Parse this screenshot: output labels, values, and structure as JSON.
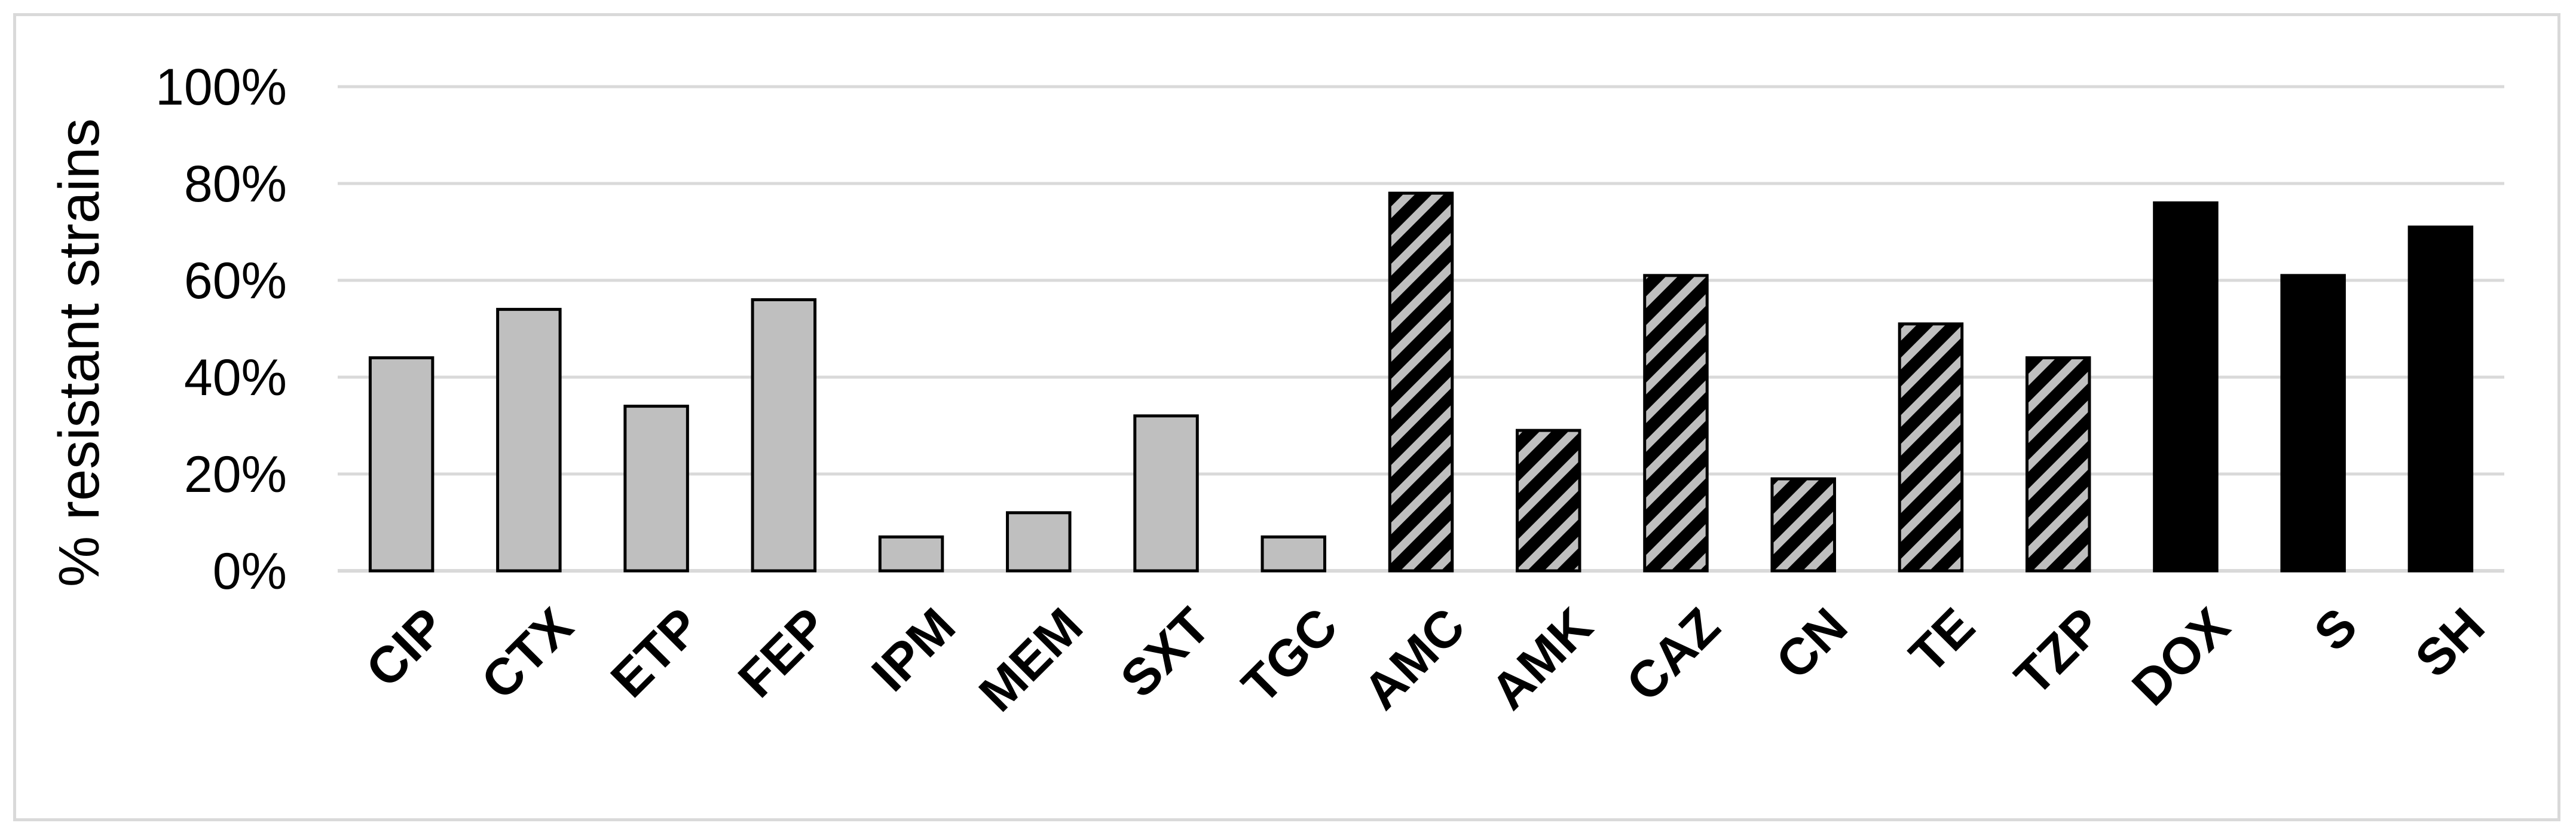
{
  "chart_data": {
    "type": "bar",
    "title": "",
    "xlabel": "",
    "ylabel": "% resistant strains",
    "ylim": [
      0,
      100
    ],
    "yticks": [
      0,
      20,
      40,
      60,
      80,
      100
    ],
    "ytick_labels": [
      "0%",
      "20%",
      "40%",
      "60%",
      "80%",
      "100%"
    ],
    "grid": true,
    "legend": "none",
    "categories": [
      "CIP",
      "CTX",
      "ETP",
      "FEP",
      "IPM",
      "MEM",
      "SXT",
      "TGC",
      "AMC",
      "AMK",
      "CAZ",
      "CN",
      "TE",
      "TZP",
      "DOX",
      "S",
      "SH"
    ],
    "values": [
      44,
      54,
      34,
      56,
      7,
      12,
      32,
      7,
      78,
      29,
      61,
      19,
      51,
      44,
      76,
      61,
      71
    ],
    "fill_styles": [
      "gray",
      "gray",
      "gray",
      "gray",
      "gray",
      "gray",
      "gray",
      "gray",
      "hatched",
      "hatched",
      "hatched",
      "hatched",
      "hatched",
      "hatched",
      "black",
      "black",
      "black"
    ],
    "colors": {
      "gray": "#bfbfbf",
      "black": "#000000",
      "hatch_fg": "#000000",
      "hatch_bg": "#bfbfbf",
      "grid": "#d9d9d9",
      "frame": "#d9d9d9"
    }
  }
}
